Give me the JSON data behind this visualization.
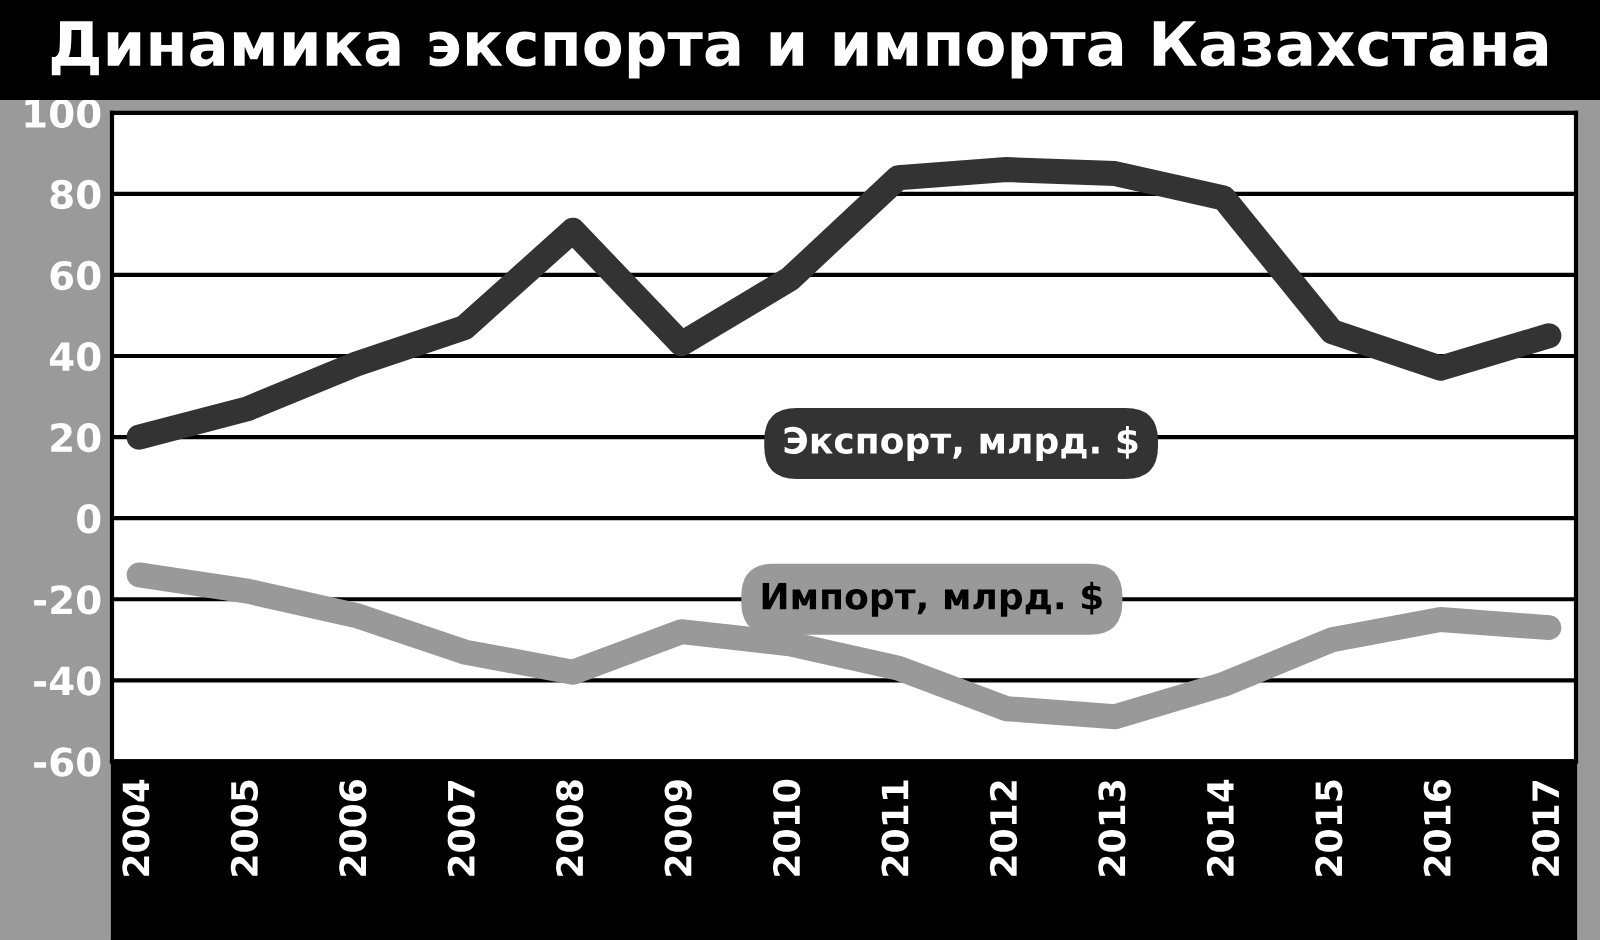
{
  "chart_data": {
    "type": "line",
    "title": "Динамика экспорта и импорта Казахстана",
    "categories": [
      "2004",
      "2005",
      "2006",
      "2007",
      "2008",
      "2009",
      "2010",
      "2011",
      "2012",
      "2013",
      "2014",
      "2015",
      "2016",
      "2017"
    ],
    "series": [
      {
        "name": "Экспорт, млрд. $",
        "color": "#333333",
        "values": [
          20,
          27,
          38,
          47,
          71,
          43,
          59,
          84,
          86,
          85,
          79,
          46,
          37,
          45
        ]
      },
      {
        "name": "Импорт, млрд. $",
        "color": "#999999",
        "values": [
          -14,
          -18,
          -24,
          -33,
          -38,
          -28,
          -31,
          -37,
          -47,
          -49,
          -41,
          -30,
          -25,
          -27
        ]
      }
    ],
    "ylim": [
      -60,
      100
    ],
    "yticks": [
      -60,
      -40,
      -20,
      0,
      20,
      40,
      60,
      80,
      100
    ],
    "grid": "y",
    "legend": false,
    "line_style": "solid"
  }
}
